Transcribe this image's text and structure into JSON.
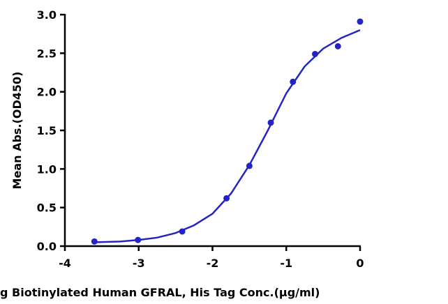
{
  "chart_data": {
    "type": "scatter",
    "x_label": "g  Biotinylated Human GFRAL, His Tag Conc.(µg/ml)",
    "y_label": "Mean Abs.(OD450)",
    "xlim": [
      -4,
      0
    ],
    "xticks": [
      -4,
      -3,
      -2,
      -1,
      0
    ],
    "ylim": [
      0,
      3
    ],
    "yticks": [
      {
        "value": 0,
        "label": "0.0"
      },
      0.5,
      {
        "value": 1,
        "label": "1.0"
      },
      1.5,
      {
        "value": 2,
        "label": "2.0"
      },
      2.5,
      {
        "value": 3,
        "label": "3.0"
      }
    ],
    "series": [
      {
        "type": "scatter",
        "color": "#2424c4",
        "x": [
          -3.6,
          -3.01,
          -2.41,
          -1.81,
          -1.5,
          -1.21,
          -0.91,
          -0.61,
          -0.3,
          0
        ],
        "values": [
          0.06,
          0.08,
          0.19,
          0.62,
          1.04,
          1.6,
          2.13,
          2.49,
          2.59,
          2.91
        ]
      },
      {
        "type": "line",
        "color": "#2424c4",
        "x": [
          -3.6,
          -3.25,
          -3,
          -2.75,
          -2.5,
          -2.25,
          -2,
          -1.75,
          -1.5,
          -1.25,
          -1,
          -0.75,
          -0.5,
          -0.25,
          0
        ],
        "values": [
          0.05,
          0.06,
          0.08,
          0.11,
          0.17,
          0.27,
          0.42,
          0.68,
          1.05,
          1.5,
          1.98,
          2.33,
          2.56,
          2.7,
          2.8
        ]
      }
    ]
  }
}
